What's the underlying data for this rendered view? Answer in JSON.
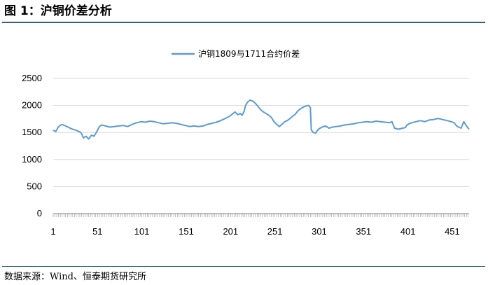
{
  "header": {
    "title": "图 1：沪铜价差分析"
  },
  "footer": {
    "source": "数据来源：Wind、恒泰期货研究所"
  },
  "colors": {
    "series": "#5b9bd5",
    "rule": "#2f5f8f",
    "grid": "#d9d9d9"
  },
  "chart_data": {
    "type": "line",
    "title": "",
    "xlabel": "",
    "ylabel": "",
    "ylim": [
      0,
      2500
    ],
    "yticks": [
      0,
      500,
      1000,
      1500,
      2000,
      2500
    ],
    "xlim": [
      1,
      470
    ],
    "xticks": [
      1,
      51,
      101,
      151,
      201,
      251,
      301,
      351,
      401,
      451
    ],
    "grid": true,
    "legend": "top-center",
    "series": [
      {
        "name": "沪铜1809与1711合约价差",
        "points": [
          [
            1,
            1540
          ],
          [
            4,
            1520
          ],
          [
            7,
            1610
          ],
          [
            11,
            1650
          ],
          [
            15,
            1620
          ],
          [
            19,
            1590
          ],
          [
            23,
            1560
          ],
          [
            27,
            1540
          ],
          [
            31,
            1510
          ],
          [
            33,
            1480
          ],
          [
            35,
            1400
          ],
          [
            38,
            1430
          ],
          [
            41,
            1380
          ],
          [
            44,
            1450
          ],
          [
            47,
            1430
          ],
          [
            50,
            1510
          ],
          [
            53,
            1610
          ],
          [
            56,
            1640
          ],
          [
            60,
            1620
          ],
          [
            65,
            1600
          ],
          [
            70,
            1610
          ],
          [
            75,
            1620
          ],
          [
            80,
            1630
          ],
          [
            85,
            1610
          ],
          [
            90,
            1650
          ],
          [
            95,
            1680
          ],
          [
            100,
            1700
          ],
          [
            105,
            1690
          ],
          [
            110,
            1710
          ],
          [
            115,
            1700
          ],
          [
            120,
            1680
          ],
          [
            125,
            1660
          ],
          [
            130,
            1670
          ],
          [
            135,
            1680
          ],
          [
            140,
            1670
          ],
          [
            145,
            1650
          ],
          [
            150,
            1630
          ],
          [
            155,
            1610
          ],
          [
            160,
            1620
          ],
          [
            165,
            1610
          ],
          [
            170,
            1620
          ],
          [
            175,
            1650
          ],
          [
            180,
            1670
          ],
          [
            185,
            1690
          ],
          [
            190,
            1720
          ],
          [
            195,
            1760
          ],
          [
            200,
            1800
          ],
          [
            203,
            1840
          ],
          [
            206,
            1880
          ],
          [
            209,
            1830
          ],
          [
            212,
            1850
          ],
          [
            214,
            1820
          ],
          [
            216,
            1880
          ],
          [
            218,
            2000
          ],
          [
            220,
            2060
          ],
          [
            223,
            2100
          ],
          [
            226,
            2080
          ],
          [
            229,
            2040
          ],
          [
            232,
            1980
          ],
          [
            235,
            1920
          ],
          [
            238,
            1880
          ],
          [
            241,
            1850
          ],
          [
            244,
            1820
          ],
          [
            247,
            1780
          ],
          [
            250,
            1700
          ],
          [
            253,
            1650
          ],
          [
            256,
            1610
          ],
          [
            259,
            1650
          ],
          [
            262,
            1700
          ],
          [
            265,
            1720
          ],
          [
            268,
            1760
          ],
          [
            271,
            1800
          ],
          [
            274,
            1840
          ],
          [
            277,
            1900
          ],
          [
            280,
            1940
          ],
          [
            283,
            1970
          ],
          [
            286,
            1990
          ],
          [
            289,
            2000
          ],
          [
            291,
            1960
          ],
          [
            292,
            1550
          ],
          [
            294,
            1500
          ],
          [
            297,
            1490
          ],
          [
            300,
            1560
          ],
          [
            304,
            1600
          ],
          [
            308,
            1620
          ],
          [
            312,
            1580
          ],
          [
            316,
            1600
          ],
          [
            320,
            1610
          ],
          [
            325,
            1620
          ],
          [
            330,
            1640
          ],
          [
            335,
            1650
          ],
          [
            340,
            1660
          ],
          [
            345,
            1680
          ],
          [
            350,
            1690
          ],
          [
            355,
            1700
          ],
          [
            360,
            1690
          ],
          [
            365,
            1710
          ],
          [
            370,
            1700
          ],
          [
            375,
            1690
          ],
          [
            380,
            1680
          ],
          [
            383,
            1700
          ],
          [
            386,
            1580
          ],
          [
            390,
            1560
          ],
          [
            395,
            1580
          ],
          [
            398,
            1590
          ],
          [
            400,
            1640
          ],
          [
            405,
            1680
          ],
          [
            410,
            1700
          ],
          [
            415,
            1720
          ],
          [
            420,
            1700
          ],
          [
            425,
            1730
          ],
          [
            430,
            1740
          ],
          [
            435,
            1760
          ],
          [
            440,
            1740
          ],
          [
            445,
            1720
          ],
          [
            450,
            1700
          ],
          [
            453,
            1680
          ],
          [
            456,
            1620
          ],
          [
            458,
            1600
          ],
          [
            461,
            1580
          ],
          [
            464,
            1700
          ],
          [
            467,
            1620
          ],
          [
            470,
            1560
          ]
        ]
      }
    ]
  }
}
